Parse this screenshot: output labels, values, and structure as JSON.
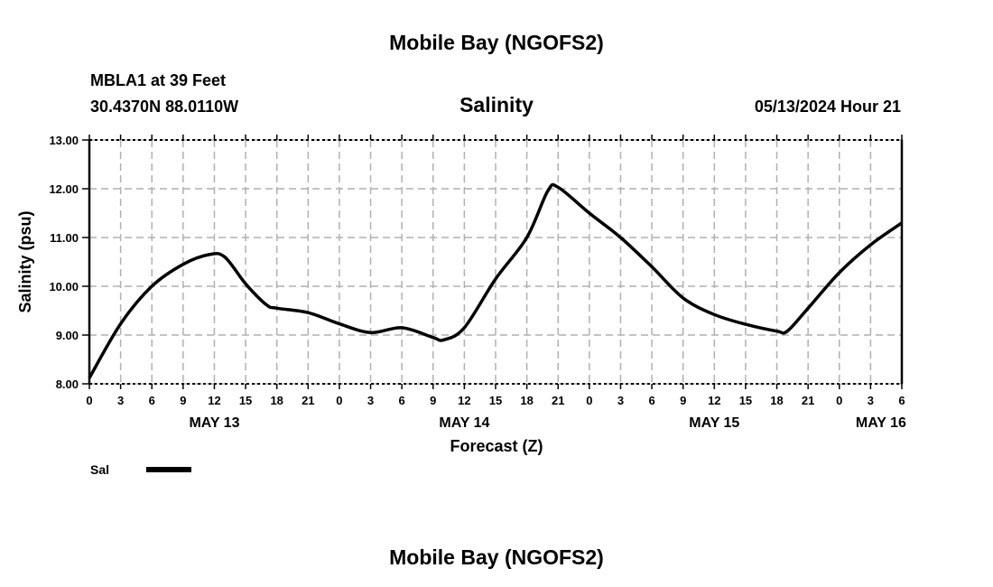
{
  "header": {
    "title": "Mobile Bay (NGOFS2)",
    "station": "MBLA1 at 39 Feet",
    "coords": "30.4370N  88.0110W",
    "datetime": "05/13/2024 Hour 21",
    "footer_title": "Mobile Bay (NGOFS2)"
  },
  "chart_data": {
    "type": "line",
    "title": "Salinity",
    "xlabel": "Forecast (Z)",
    "ylabel": "Salinity (psu)",
    "xlim": [
      0,
      78
    ],
    "ylim": [
      8,
      13
    ],
    "grid": true,
    "y_ticks": [
      "8.00",
      "9.00",
      "10.00",
      "11.00",
      "12.00",
      "13.00"
    ],
    "x_tick_labels": [
      "0",
      "3",
      "6",
      "9",
      "12",
      "15",
      "18",
      "21",
      "0",
      "3",
      "6",
      "9",
      "12",
      "15",
      "18",
      "21",
      "0",
      "3",
      "6",
      "9",
      "12",
      "15",
      "18",
      "21",
      "0",
      "3",
      "6"
    ],
    "date_labels": [
      {
        "hour": 12,
        "label": "MAY 13"
      },
      {
        "hour": 36,
        "label": "MAY 14"
      },
      {
        "hour": 60,
        "label": "MAY 15"
      },
      {
        "hour": 76,
        "label": "MAY 16"
      }
    ],
    "legend": {
      "position": "bottom-left",
      "entries": [
        "Sal"
      ]
    },
    "series": [
      {
        "name": "Sal",
        "color": "#000000",
        "x": [
          0,
          3,
          6,
          9,
          11.5,
          13,
          15,
          17,
          18,
          21,
          24,
          27,
          30,
          33,
          34,
          36,
          39,
          42,
          44,
          45,
          48,
          51,
          54,
          57,
          60,
          63,
          66,
          67,
          69,
          72,
          75,
          78
        ],
        "y": [
          8.12,
          9.23,
          10.0,
          10.45,
          10.65,
          10.6,
          10.05,
          9.62,
          9.55,
          9.46,
          9.23,
          9.05,
          9.15,
          8.95,
          8.9,
          9.15,
          10.15,
          11.0,
          11.95,
          12.03,
          11.5,
          11.0,
          10.4,
          9.76,
          9.42,
          9.22,
          9.08,
          9.08,
          9.55,
          10.28,
          10.85,
          11.3
        ]
      }
    ]
  }
}
